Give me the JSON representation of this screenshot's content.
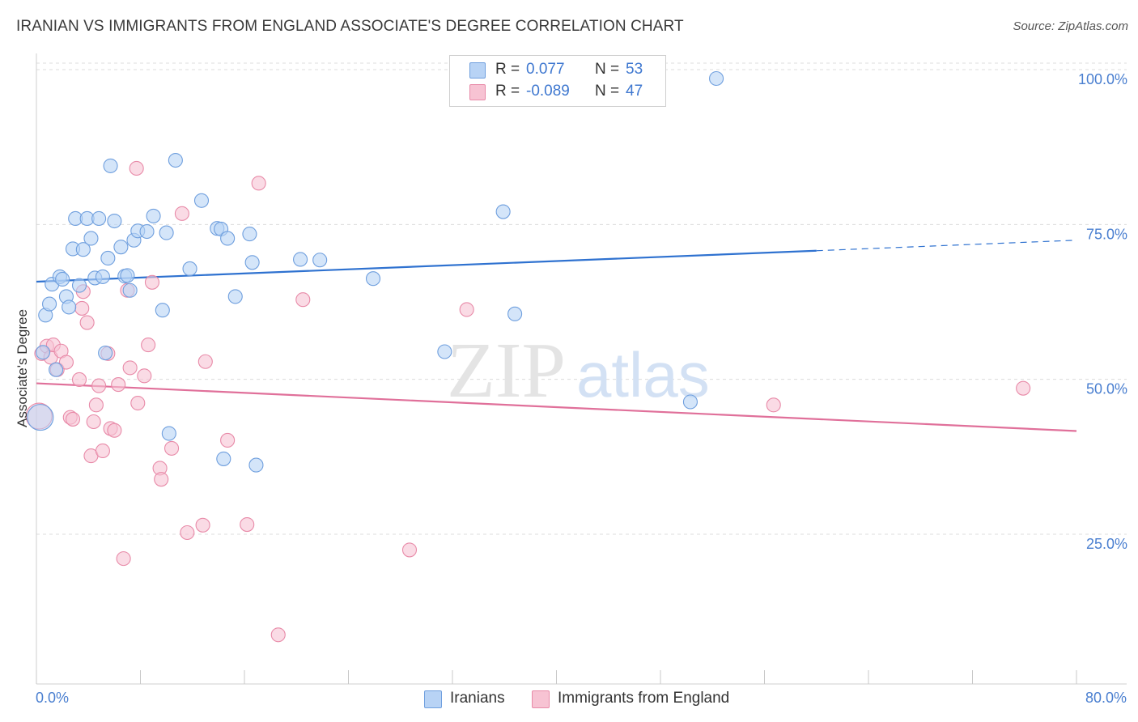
{
  "title": "IRANIAN VS IMMIGRANTS FROM ENGLAND ASSOCIATE'S DEGREE CORRELATION CHART",
  "source": "Source: ZipAtlas.com",
  "watermark": {
    "zip": "ZIP",
    "atlas": "atlas"
  },
  "legend": {
    "rows": [
      {
        "r_label": "R =",
        "r_value": "0.077",
        "n_label": "N =",
        "n_value": "53"
      },
      {
        "r_label": "R =",
        "r_value": "-0.089",
        "n_label": "N =",
        "n_value": "47"
      }
    ]
  },
  "bottom_legend": {
    "iranians": "Iranians",
    "england": "Immigrants from England"
  },
  "colors": {
    "blue_fill": "#b8d3f5",
    "blue_stroke": "#6f9fde",
    "blue_line": "#2f72d0",
    "pink_fill": "#f7c3d3",
    "pink_stroke": "#e88aa8",
    "pink_line": "#e0709a",
    "axis_text": "#4a7fd0",
    "grid": "#dcdcdc"
  },
  "chart_data": {
    "type": "scatter",
    "title": "IRANIAN VS IMMIGRANTS FROM ENGLAND ASSOCIATE'S DEGREE CORRELATION CHART",
    "xlabel": "",
    "ylabel": "Associate's Degree",
    "xlim": [
      0,
      80
    ],
    "ylim": [
      0,
      102
    ],
    "x_tick_labels": [
      "0.0%",
      "80.0%"
    ],
    "y_ticks": [
      25,
      50,
      75,
      100
    ],
    "y_tick_labels": [
      "25.0%",
      "50.0%",
      "75.0%",
      "100.0%"
    ],
    "grid": true,
    "legend_position": "top-center",
    "series": [
      {
        "name": "Iranians",
        "r": 0.077,
        "n": 53,
        "trend": {
          "x": [
            0,
            60
          ],
          "y": [
            67.2,
            72.2
          ],
          "dashed_to": [
            80,
            73.9
          ]
        },
        "points": [
          [
            0.5,
            55.8
          ],
          [
            0.7,
            61.8
          ],
          [
            1.0,
            63.6
          ],
          [
            1.2,
            66.8
          ],
          [
            1.5,
            53.0
          ],
          [
            1.8,
            68.0
          ],
          [
            2.0,
            67.6
          ],
          [
            2.3,
            64.8
          ],
          [
            2.5,
            63.1
          ],
          [
            2.8,
            72.5
          ],
          [
            3.0,
            77.4
          ],
          [
            3.3,
            66.6
          ],
          [
            3.6,
            72.4
          ],
          [
            3.9,
            77.4
          ],
          [
            4.2,
            74.2
          ],
          [
            4.5,
            67.8
          ],
          [
            4.8,
            77.4
          ],
          [
            5.1,
            68.0
          ],
          [
            5.3,
            55.7
          ],
          [
            5.5,
            71.0
          ],
          [
            5.7,
            85.9
          ],
          [
            6.0,
            77.0
          ],
          [
            6.5,
            72.8
          ],
          [
            6.8,
            68.1
          ],
          [
            7.0,
            68.2
          ],
          [
            7.2,
            65.8
          ],
          [
            7.5,
            73.9
          ],
          [
            7.8,
            75.4
          ],
          [
            8.5,
            75.3
          ],
          [
            9.0,
            77.8
          ],
          [
            9.7,
            62.6
          ],
          [
            10.0,
            75.1
          ],
          [
            10.2,
            42.7
          ],
          [
            10.7,
            86.8
          ],
          [
            11.8,
            69.3
          ],
          [
            12.7,
            80.3
          ],
          [
            13.9,
            75.8
          ],
          [
            14.2,
            75.7
          ],
          [
            14.4,
            38.6
          ],
          [
            14.7,
            74.2
          ],
          [
            15.3,
            64.8
          ],
          [
            16.4,
            74.9
          ],
          [
            16.6,
            70.3
          ],
          [
            16.9,
            37.6
          ],
          [
            20.3,
            70.8
          ],
          [
            21.8,
            70.7
          ],
          [
            25.9,
            67.7
          ],
          [
            31.4,
            55.9
          ],
          [
            35.9,
            78.5
          ],
          [
            36.8,
            62.0
          ],
          [
            50.3,
            47.8
          ],
          [
            52.3,
            100.0
          ],
          [
            0.3,
            45.3
          ]
        ]
      },
      {
        "name": "Immigrants from England",
        "r": -0.089,
        "n": 47,
        "trend": {
          "x": [
            0,
            80
          ],
          "y": [
            50.8,
            43.1
          ]
        },
        "points": [
          [
            0.4,
            55.6
          ],
          [
            0.8,
            56.8
          ],
          [
            1.1,
            55.0
          ],
          [
            1.3,
            57.0
          ],
          [
            1.6,
            53.0
          ],
          [
            1.9,
            56.0
          ],
          [
            2.3,
            54.2
          ],
          [
            2.6,
            45.3
          ],
          [
            2.8,
            45.0
          ],
          [
            3.3,
            51.4
          ],
          [
            3.5,
            62.9
          ],
          [
            3.6,
            65.6
          ],
          [
            3.9,
            60.6
          ],
          [
            4.2,
            39.1
          ],
          [
            4.4,
            44.6
          ],
          [
            4.6,
            47.3
          ],
          [
            4.8,
            50.4
          ],
          [
            5.1,
            39.9
          ],
          [
            5.5,
            55.6
          ],
          [
            5.7,
            43.5
          ],
          [
            6.0,
            43.2
          ],
          [
            6.3,
            50.6
          ],
          [
            6.7,
            22.5
          ],
          [
            7.0,
            65.8
          ],
          [
            7.2,
            53.3
          ],
          [
            7.7,
            85.5
          ],
          [
            7.8,
            47.6
          ],
          [
            8.3,
            52.0
          ],
          [
            8.6,
            57.0
          ],
          [
            8.9,
            67.1
          ],
          [
            9.5,
            37.1
          ],
          [
            9.6,
            35.3
          ],
          [
            10.4,
            40.3
          ],
          [
            11.2,
            78.2
          ],
          [
            11.6,
            26.7
          ],
          [
            12.8,
            27.9
          ],
          [
            13.0,
            54.3
          ],
          [
            14.7,
            41.6
          ],
          [
            16.2,
            28.0
          ],
          [
            17.1,
            83.1
          ],
          [
            18.6,
            10.2
          ],
          [
            20.5,
            64.3
          ],
          [
            28.7,
            23.9
          ],
          [
            33.1,
            62.7
          ],
          [
            56.7,
            47.3
          ],
          [
            75.9,
            50.0
          ],
          [
            0.2,
            45.5
          ]
        ]
      }
    ]
  }
}
